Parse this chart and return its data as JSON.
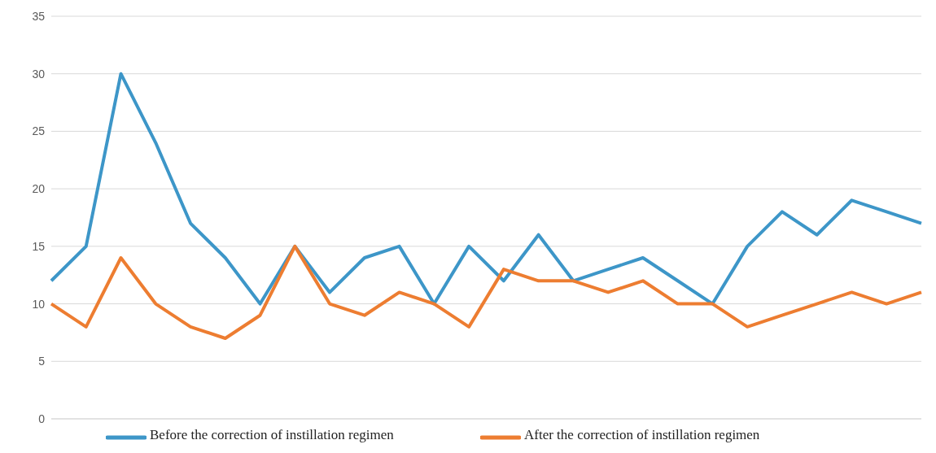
{
  "chart_data": {
    "type": "line",
    "categories": [
      null,
      null,
      null,
      null,
      null,
      null,
      null,
      null,
      null,
      null,
      null,
      null,
      null,
      null,
      null,
      null,
      null,
      null,
      null,
      null,
      null,
      null,
      null,
      null,
      null,
      null
    ],
    "series": [
      {
        "name": "Before the correction of instillation regimen",
        "color": "#3d96c8",
        "values": [
          12,
          15,
          30,
          24,
          17,
          14,
          10,
          15,
          11,
          14,
          15,
          10,
          15,
          12,
          16,
          12,
          13,
          14,
          12,
          10,
          15,
          18,
          16,
          19,
          18,
          17
        ]
      },
      {
        "name": "After the correction of instillation regimen",
        "color": "#ed7d31",
        "values": [
          10,
          8,
          14,
          10,
          8,
          7,
          9,
          15,
          10,
          9,
          11,
          10,
          8,
          13,
          12,
          12,
          11,
          12,
          10,
          10,
          8,
          9,
          10,
          11,
          10,
          11
        ]
      }
    ],
    "ylim": [
      0,
      35
    ],
    "yticks": [
      0,
      5,
      10,
      15,
      20,
      25,
      30,
      35
    ],
    "grid": "y",
    "legend": "bottom",
    "marker": "none",
    "line_style": "solid"
  }
}
